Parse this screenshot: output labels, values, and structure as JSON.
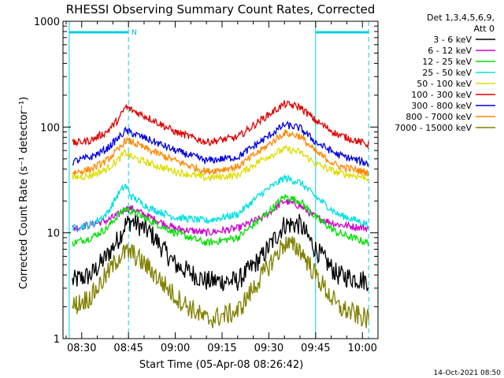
{
  "chart_data": {
    "type": "line",
    "title": "RHESSI Observing Summary Count Rates, Corrected",
    "xlabel": "Start Time (05-Apr-08 08:26:42)",
    "ylabel": "Corrected Count Rate (s⁻¹ detector⁻¹)",
    "yscale": "log",
    "ylim": [
      1,
      1000
    ],
    "xlim": [
      "08:24",
      "10:05"
    ],
    "x_ticks": [
      "08:30",
      "08:45",
      "09:00",
      "09:15",
      "09:30",
      "09:45",
      "10:00"
    ],
    "y_ticks": [
      "1",
      "10",
      "100",
      "1000"
    ],
    "timestamp": "14-Oct-2021 08:50",
    "legend": {
      "header": [
        "Det 1,3,4,5,6,9,",
        "Att 0"
      ],
      "placement": "right"
    },
    "markers": {
      "night_bars": [
        {
          "start": "08:26",
          "end": "08:45"
        },
        {
          "start": "09:45",
          "end": "10:02"
        }
      ],
      "dashed_lines": [
        "08:45",
        "10:02"
      ],
      "solid_lines": [
        "08:26",
        "09:45"
      ],
      "label": "N"
    },
    "x": [
      "08:27",
      "08:33",
      "08:38",
      "08:42",
      "08:44",
      "08:46",
      "08:52",
      "09:00",
      "09:10",
      "09:20",
      "09:28",
      "09:35",
      "09:40",
      "09:45",
      "09:52",
      "10:02"
    ],
    "series": [
      {
        "name": "3 - 6 keV",
        "color": "#000000",
        "values": [
          3.5,
          4,
          6,
          9,
          12,
          13,
          10,
          5,
          3.5,
          3.5,
          6,
          12,
          12,
          7,
          4,
          3.5
        ]
      },
      {
        "name": "6 - 12 keV",
        "color": "#cc00cc",
        "values": [
          11,
          12,
          13,
          15,
          17,
          17,
          14,
          11,
          10,
          11,
          14,
          20,
          18,
          14,
          12,
          11
        ]
      },
      {
        "name": "12 - 25 keV",
        "color": "#00e000",
        "values": [
          8,
          9,
          11,
          15,
          17,
          16,
          13,
          10,
          8,
          9,
          14,
          22,
          20,
          14,
          10,
          8
        ]
      },
      {
        "name": "25 - 50 keV",
        "color": "#00e0e0",
        "values": [
          11,
          12,
          15,
          24,
          28,
          22,
          17,
          14,
          13,
          15,
          24,
          33,
          30,
          22,
          15,
          12
        ]
      },
      {
        "name": "50 - 100 keV",
        "color": "#dddd00",
        "values": [
          33,
          35,
          40,
          50,
          58,
          52,
          45,
          38,
          33,
          35,
          50,
          62,
          58,
          45,
          37,
          33
        ]
      },
      {
        "name": "100 - 300 keV",
        "color": "#dd0000",
        "values": [
          70,
          75,
          90,
          120,
          155,
          145,
          120,
          90,
          72,
          80,
          120,
          165,
          155,
          115,
          85,
          68
        ]
      },
      {
        "name": "300 - 800 keV",
        "color": "#0000dd",
        "values": [
          47,
          52,
          62,
          80,
          92,
          88,
          75,
          60,
          48,
          52,
          75,
          105,
          98,
          72,
          55,
          45
        ]
      },
      {
        "name": "800 - 7000 keV",
        "color": "#ff8800",
        "values": [
          37,
          40,
          48,
          62,
          75,
          72,
          60,
          48,
          38,
          42,
          62,
          88,
          82,
          58,
          43,
          37
        ]
      },
      {
        "name": "7000 - 15000 keV",
        "color": "#808000",
        "values": [
          2,
          2.5,
          4,
          6,
          6.5,
          6.5,
          4.5,
          2.5,
          1.5,
          1.8,
          4,
          8,
          7,
          4,
          2,
          1.5
        ]
      }
    ]
  }
}
